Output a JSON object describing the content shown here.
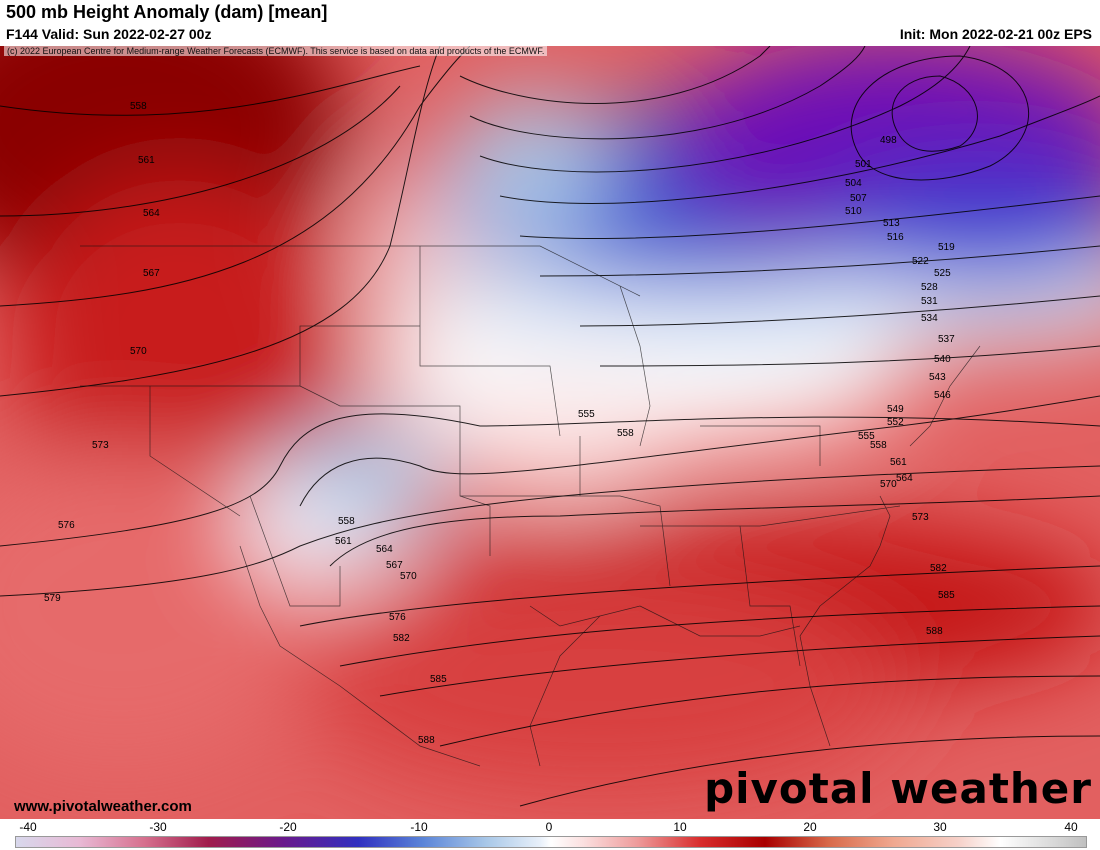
{
  "header": {
    "title": "500 mb Height Anomaly (dam) [mean]",
    "valid": "F144 Valid: Sun 2022-02-27 00z",
    "init": "Init: Mon 2022-02-21 00z EPS"
  },
  "map": {
    "copyright": "(c) 2022 European Centre for Medium-range Weather Forecasts (ECMWF). This service is based on data and products of the ECMWF.",
    "website": "www.pivotalweather.com",
    "brand": "pivotal weather",
    "contour_labels": [
      "498",
      "501",
      "504",
      "507",
      "510",
      "513",
      "516",
      "519",
      "522",
      "525",
      "528",
      "531",
      "534",
      "537",
      "540",
      "543",
      "546",
      "549",
      "552",
      "555",
      "558",
      "561",
      "564",
      "567",
      "570",
      "573",
      "576",
      "579",
      "582",
      "585",
      "588"
    ],
    "colors": {
      "strong_negative": "#6a10b8",
      "negative": "#2c34c4",
      "weak_negative": "#a9c8e8",
      "neutral": "#ffffff",
      "weak_positive": "#efb2b2",
      "positive": "#d82c2c",
      "strong_positive": "#8a0000"
    }
  },
  "colorbar": {
    "ticks": [
      "-40",
      "-30",
      "-20",
      "-10",
      "0",
      "10",
      "20",
      "30",
      "40"
    ],
    "min": -40,
    "max": 40
  }
}
